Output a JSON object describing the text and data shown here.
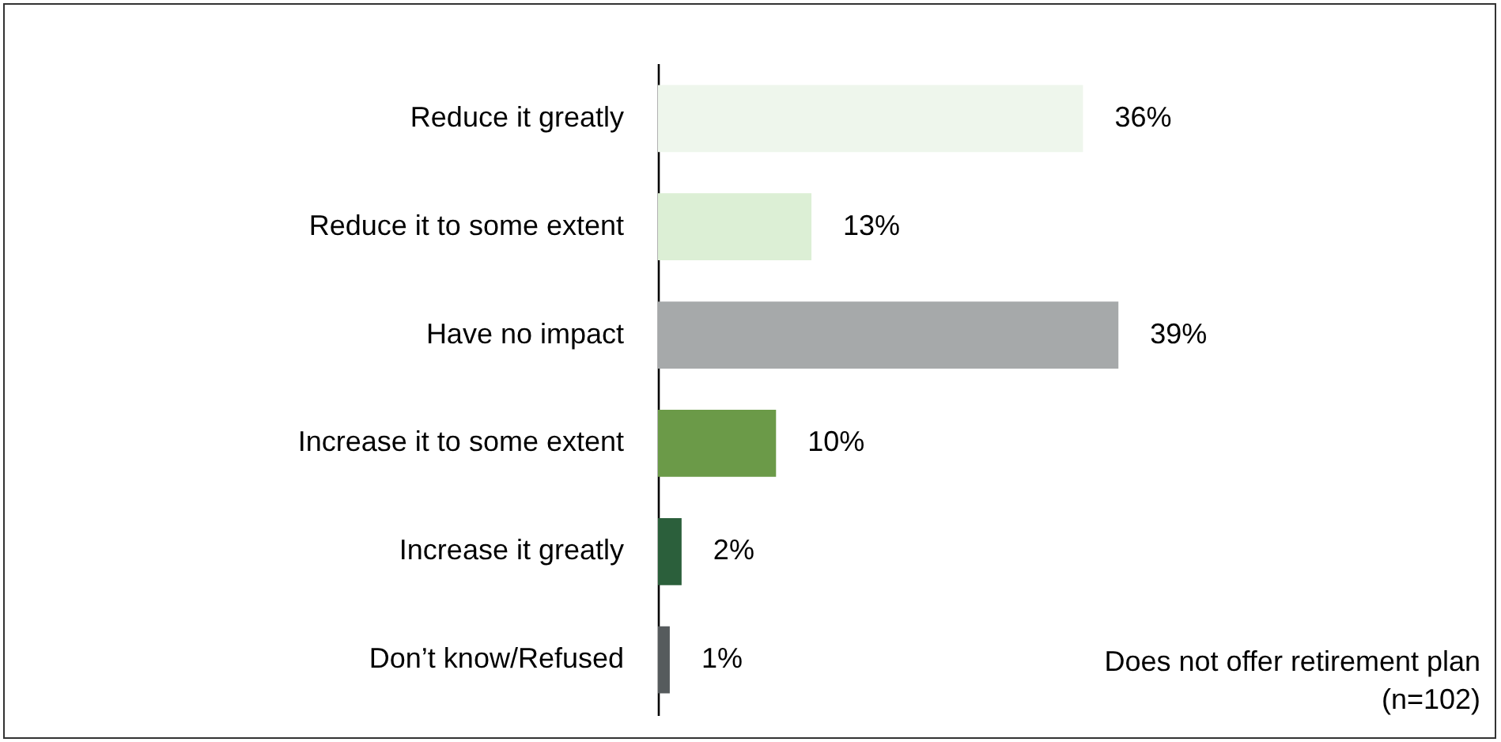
{
  "chart_data": {
    "type": "bar",
    "orientation": "horizontal",
    "categories": [
      "Reduce it greatly",
      "Reduce it to some extent",
      "Have no impact",
      "Increase it to some extent",
      "Increase it greatly",
      "Don’t know/Refused"
    ],
    "values": [
      36,
      13,
      39,
      10,
      2,
      1
    ],
    "colors": [
      "#eef6ec",
      "#dcefd5",
      "#a6a9aa",
      "#6b9a48",
      "#2b5f3b",
      "#565b5d"
    ],
    "value_labels": [
      "36%",
      "13%",
      "39%",
      "10%",
      "2%",
      "1%"
    ],
    "annotations": [
      "Does not offer retirement plan\n(n=102)"
    ]
  }
}
